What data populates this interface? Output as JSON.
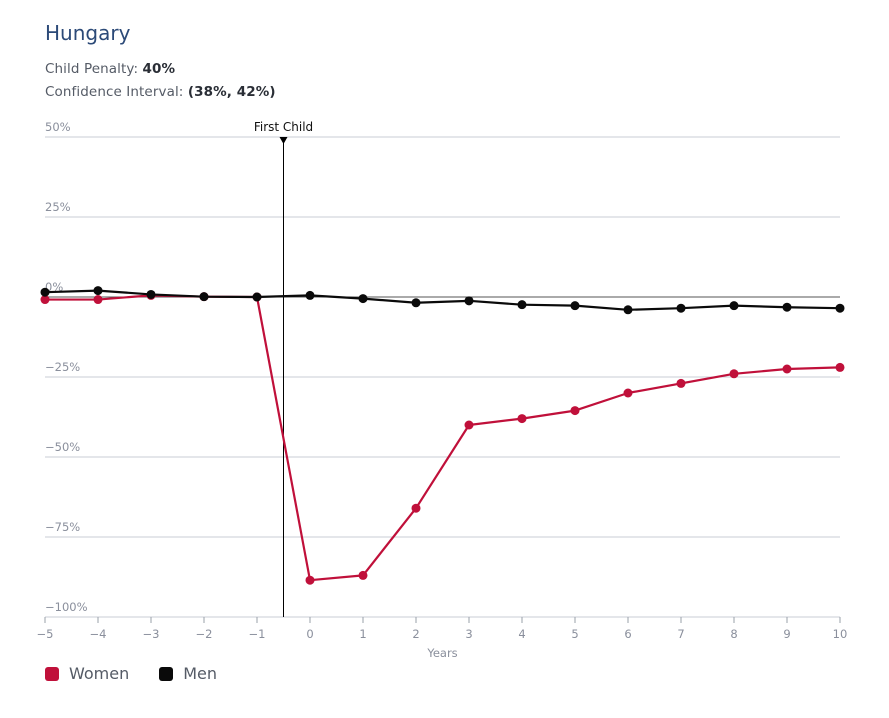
{
  "header": {
    "title": "Hungary",
    "penalty_label": "Child Penalty:",
    "penalty_value": "40%",
    "ci_label": "Confidence Interval:",
    "ci_value": "(38%, 42%)"
  },
  "colors": {
    "women": "#c0103a",
    "men": "#0a0a0a",
    "grid": "#c9ccd6",
    "tick_text": "#8a8f9c"
  },
  "chart_data": {
    "type": "line",
    "xlabel": "Years",
    "ylabel": "",
    "x": [
      -5,
      -4,
      -3,
      -2,
      -1,
      0,
      1,
      2,
      3,
      4,
      5,
      6,
      7,
      8,
      9,
      10
    ],
    "x_tick_labels": [
      "−5",
      "−4",
      "−3",
      "−2",
      "−1",
      "0",
      "1",
      "2",
      "3",
      "4",
      "5",
      "6",
      "7",
      "8",
      "9",
      "10"
    ],
    "xlim": [
      -5,
      10
    ],
    "ylim": [
      -100,
      50
    ],
    "y_ticks": [
      50,
      25,
      0,
      -25,
      -50,
      -75,
      -100
    ],
    "y_tick_labels": [
      "50%",
      "25%",
      "0%",
      "−25%",
      "−50%",
      "−75%",
      "−100%"
    ],
    "grid": true,
    "annotation": {
      "label": "First Child",
      "x": -0.5
    },
    "series": [
      {
        "name": "Women",
        "color": "#c0103a",
        "values": [
          -0.8,
          -0.8,
          0.5,
          0.1,
          0.0,
          -88.5,
          -87.0,
          -66.0,
          -40.0,
          -38.0,
          -35.5,
          -30.0,
          -27.0,
          -24.0,
          -22.5,
          -22.0
        ]
      },
      {
        "name": "Men",
        "color": "#0a0a0a",
        "values": [
          1.5,
          2.0,
          0.8,
          0.1,
          0.0,
          0.5,
          -0.5,
          -1.8,
          -1.2,
          -2.4,
          -2.7,
          -4.0,
          -3.5,
          -2.7,
          -3.2,
          -3.5
        ]
      }
    ],
    "legend": "bottom-left"
  }
}
